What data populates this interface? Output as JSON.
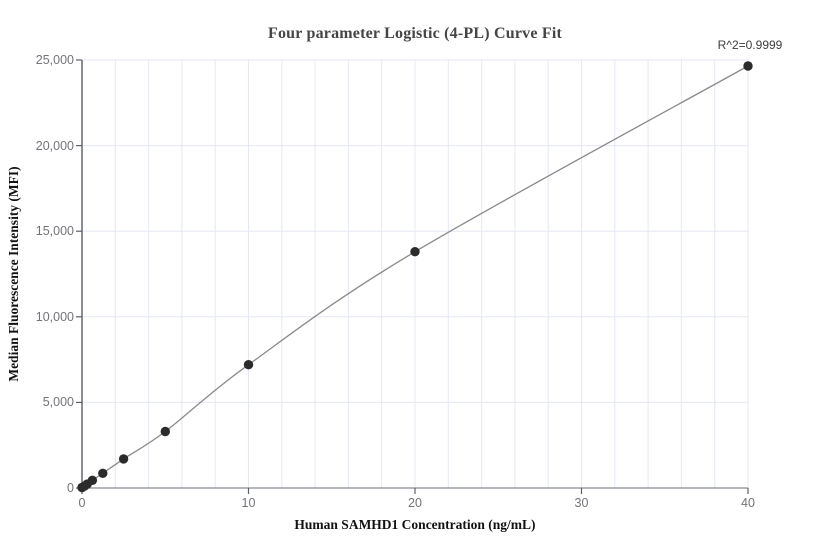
{
  "chart_data": {
    "type": "scatter",
    "title": "Four parameter Logistic (4-PL) Curve Fit",
    "xlabel": "Human SAMHD1 Concentration (ng/mL)",
    "ylabel": "Median Fluorescence Intensity (MFI)",
    "annotation": "R^2=0.9999",
    "xlim": [
      0,
      40
    ],
    "ylim": [
      0,
      25000
    ],
    "x_ticks": [
      0,
      10,
      20,
      30,
      40
    ],
    "x_tick_labels": [
      "0",
      "10",
      "20",
      "30",
      "40"
    ],
    "y_ticks": [
      0,
      5000,
      10000,
      15000,
      20000,
      25000
    ],
    "y_tick_labels": [
      "0",
      "5,000",
      "10,000",
      "15,000",
      "20,000",
      "25,000"
    ],
    "x_grid_step": 2,
    "grid": true,
    "legend": false,
    "series": [
      {
        "name": "standard-curve",
        "x": [
          0,
          0.15625,
          0.3125,
          0.625,
          1.25,
          2.5,
          5,
          10,
          20,
          40
        ],
        "y": [
          30,
          110,
          230,
          450,
          860,
          1700,
          3300,
          7200,
          13800,
          24650
        ]
      }
    ],
    "colors": {
      "point": "#2b2b2b",
      "curve": "#8a8a8a",
      "grid": "#e5e8f4",
      "y_axis": "#4b515c",
      "x_axis": "#888c94",
      "tick": "#5c6067",
      "tick_label": "#73737a",
      "title": "#454545",
      "axis_label": "#121212",
      "annotation": "#3d3d3d"
    }
  }
}
